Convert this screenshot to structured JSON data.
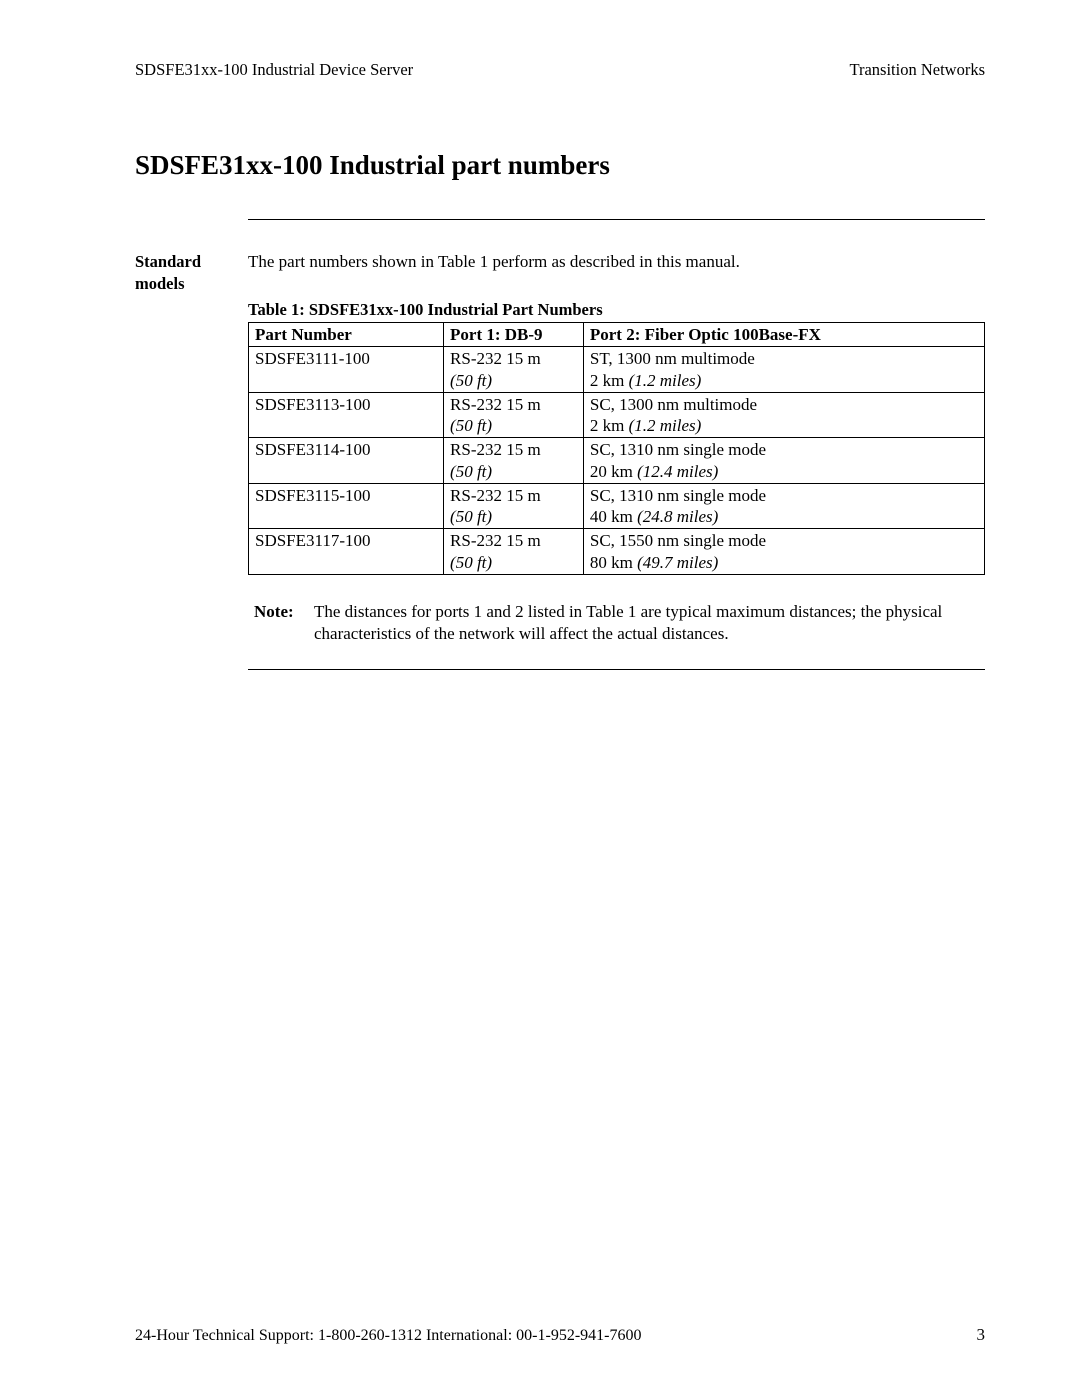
{
  "header": {
    "left": "SDSFE31xx-100 Industrial Device Server",
    "right": "Transition Networks"
  },
  "title": "SDSFE31xx-100 Industrial part numbers",
  "side_label_l1": "Standard",
  "side_label_l2": "models",
  "intro": "The part numbers shown in Table 1 perform as described in this manual.",
  "table": {
    "caption": "Table 1:  SDSFE31xx-100 Industrial Part Numbers",
    "columns": {
      "pn": "Part Number",
      "p1": "Port 1:  DB-9",
      "p2": "Port 2:  Fiber Optic 100Base-FX"
    },
    "rows": [
      {
        "pn": "SDSFE3111-100",
        "p1_main": "RS-232 15 m",
        "p1_sub": "(50 ft)",
        "p2_main": "ST, 1300 nm multimode",
        "p2_sub_a": "2 km ",
        "p2_sub_b": "(1.2 miles)"
      },
      {
        "pn": "SDSFE3113-100",
        "p1_main": "RS-232 15 m",
        "p1_sub": "(50 ft)",
        "p2_main": "SC, 1300 nm multimode",
        "p2_sub_a": "2 km ",
        "p2_sub_b": "(1.2 miles)"
      },
      {
        "pn": "SDSFE3114-100",
        "p1_main": "RS-232 15 m",
        "p1_sub": "(50 ft)",
        "p2_main": "SC, 1310 nm single mode",
        "p2_sub_a": "20 km ",
        "p2_sub_b": "(12.4 miles)"
      },
      {
        "pn": "SDSFE3115-100",
        "p1_main": "RS-232 15 m",
        "p1_sub": "(50 ft)",
        "p2_main": "SC, 1310 nm single mode",
        "p2_sub_a": "40 km ",
        "p2_sub_b": "(24.8 miles)"
      },
      {
        "pn": "SDSFE3117-100",
        "p1_main": "RS-232 15 m",
        "p1_sub": "(50 ft)",
        "p2_main": "SC, 1550 nm single mode",
        "p2_sub_a": "80 km ",
        "p2_sub_b": "(49.7 miles)"
      }
    ]
  },
  "note": {
    "label": "Note:",
    "text": "The distances for ports 1 and 2 listed in Table 1 are typical maximum distances; the physical characteristics of the network will affect the actual distances."
  },
  "footer": {
    "support": "24-Hour Technical Support:  1-800-260-1312   International: 00-1-952-941-7600",
    "page": "3"
  }
}
